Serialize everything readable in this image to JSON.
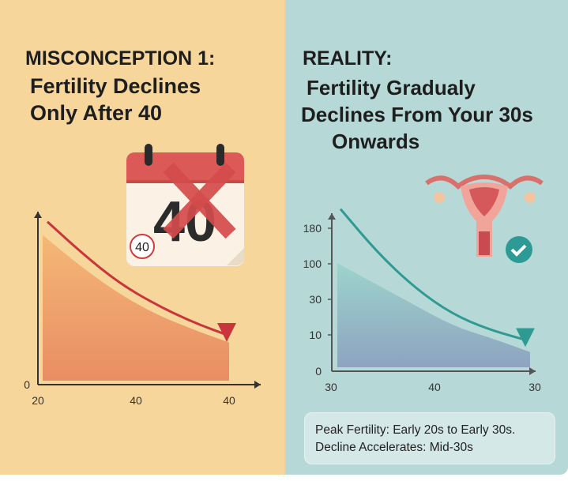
{
  "left": {
    "heading": "MISCONCEPTION 1:",
    "subheading_line1": "Fertility Declines",
    "subheading_line2": "Only After 40",
    "calendar": {
      "number": "40",
      "badge": "40",
      "crossed_out": true
    }
  },
  "right": {
    "heading": "REALITY:",
    "subheading_line1": "Fertility Gradualy",
    "subheading_line2": "Declines From Your 30s",
    "subheading_line3": "Onwards",
    "icons": [
      "uterus-icon",
      "check-circle-icon"
    ],
    "info_line1": "Peak Fertility: Early 20s to Early 30s.",
    "info_line2": "Decline Accelerates: Mid-30s"
  },
  "colors": {
    "left_bg": "#f6d69b",
    "right_bg": "#b6d9d7",
    "left_trend": "#c8353a",
    "right_trend": "#2f9a92",
    "check": "#2e9a95"
  },
  "chart_data": [
    {
      "type": "area",
      "x_tick_labels": [
        "20",
        "40",
        "40"
      ],
      "y_tick_labels": [
        "0"
      ],
      "trend": "decreasing",
      "area_relative": [
        0.78,
        0.62,
        0.48,
        0.37,
        0.29,
        0.22
      ],
      "arrow_relative": [
        0.85,
        0.68,
        0.53,
        0.42,
        0.33,
        0.26
      ]
    },
    {
      "type": "area",
      "x_tick_labels": [
        "30",
        "40",
        "30"
      ],
      "y_tick_labels": [
        "0",
        "10",
        "30",
        "100",
        "180"
      ],
      "trend": "decreasing",
      "area_relative": [
        0.62,
        0.5,
        0.38,
        0.26,
        0.19,
        0.11
      ],
      "arrow_relative": [
        0.93,
        0.68,
        0.48,
        0.33,
        0.24,
        0.18
      ]
    }
  ]
}
